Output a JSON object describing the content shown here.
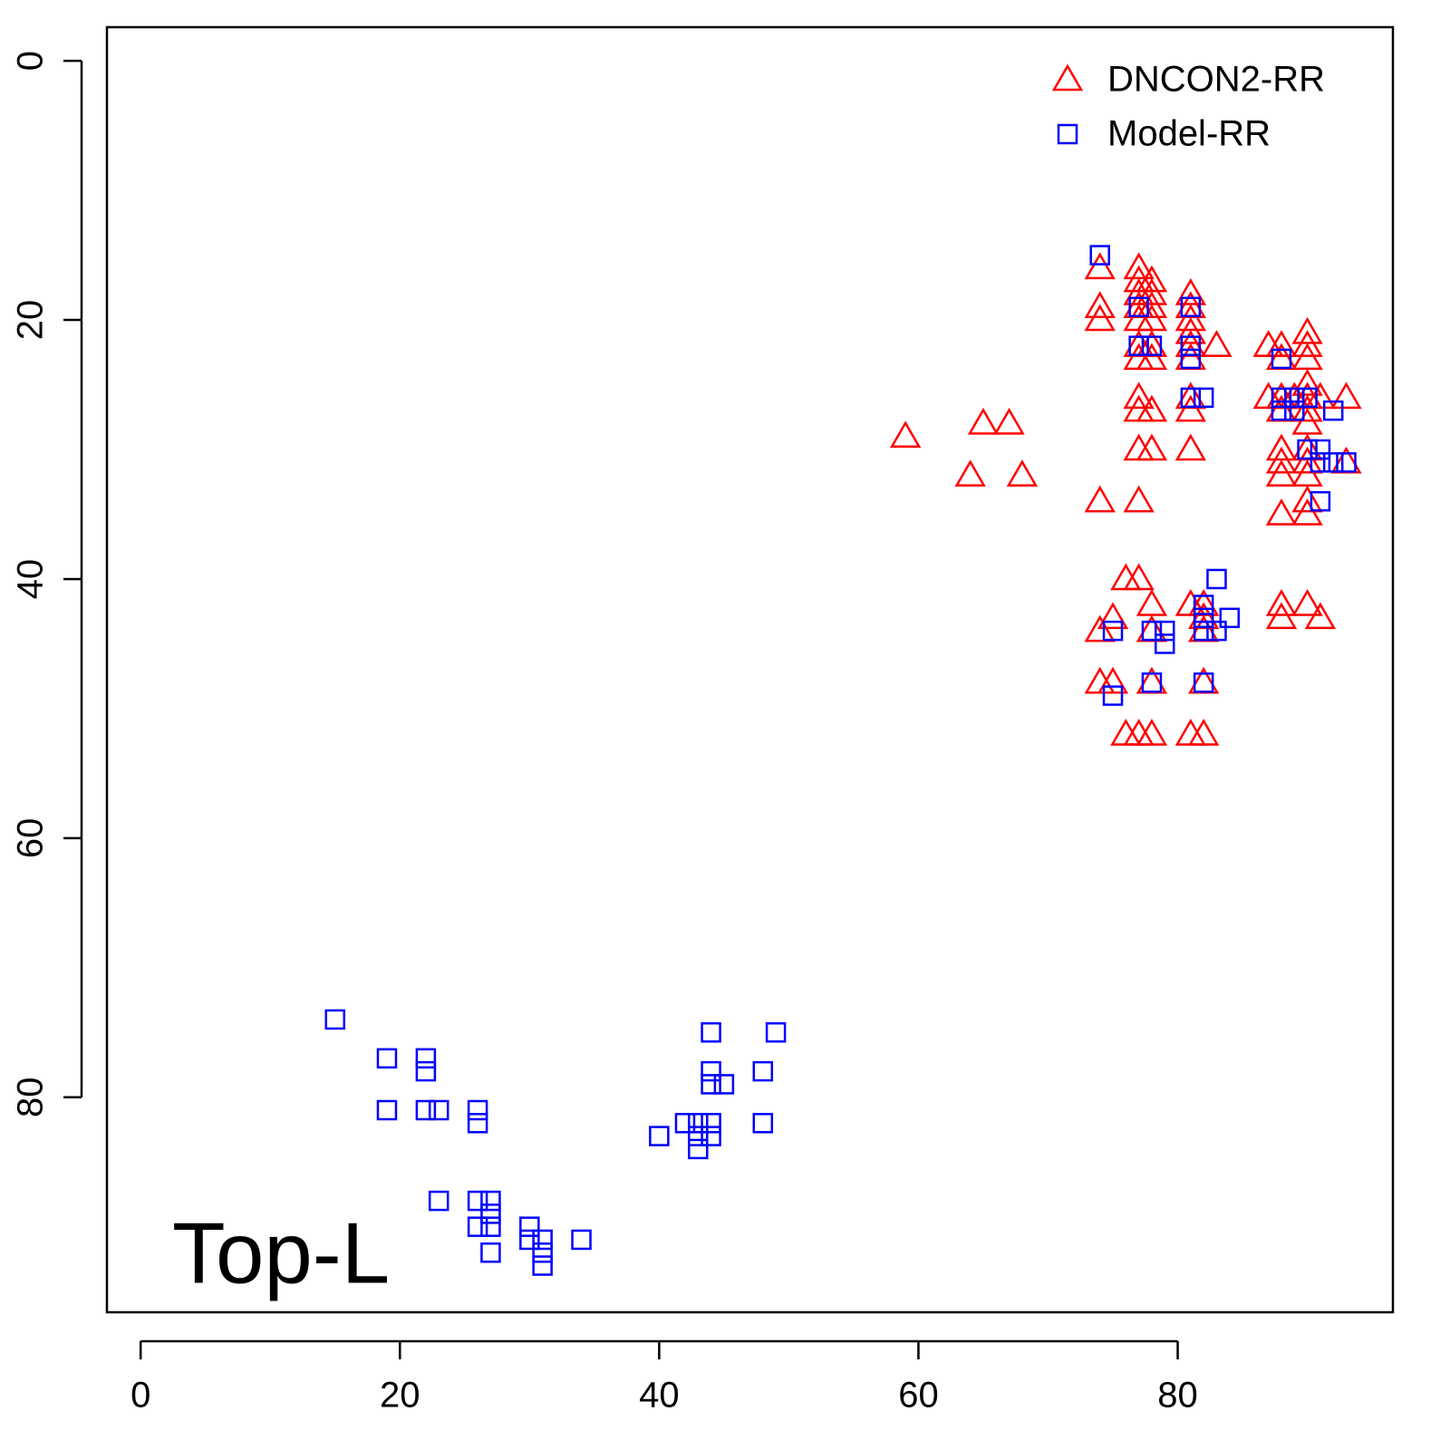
{
  "chart_data": {
    "type": "scatter",
    "annotation": "Top-L",
    "xlim": [
      -2.6,
      96.6
    ],
    "xticks": [
      0,
      20,
      40,
      60,
      80
    ],
    "ylim": [
      96.6,
      -2.6
    ],
    "yticks": [
      0,
      20,
      40,
      60,
      80
    ],
    "legend": "top-right",
    "series": [
      {
        "name": "DNCON2-RR",
        "color": "#ff0000",
        "marker": "triangle",
        "x": [
          59,
          65,
          67,
          64,
          68,
          74,
          74,
          74,
          74,
          74,
          74,
          75,
          75,
          76,
          77,
          77,
          77,
          77,
          77,
          77,
          77,
          77,
          77,
          77,
          77,
          77,
          76,
          77,
          78,
          78,
          78,
          78,
          78,
          78,
          78,
          78,
          78,
          78,
          78,
          78,
          81,
          81,
          81,
          81,
          81,
          81,
          81,
          81,
          81,
          81,
          81,
          82,
          82,
          82,
          82,
          82,
          83,
          87,
          87,
          88,
          88,
          88,
          88,
          88,
          88,
          88,
          88,
          88,
          88,
          90,
          90,
          90,
          90,
          90,
          90,
          90,
          90,
          90,
          90,
          90,
          90,
          90,
          89,
          91,
          91,
          93,
          93
        ],
        "y": [
          29,
          28,
          28,
          32,
          32,
          16,
          19,
          20,
          34,
          44,
          48,
          43,
          48,
          40,
          16,
          17,
          18,
          19,
          20,
          22,
          23,
          26,
          27,
          30,
          34,
          40,
          52,
          52,
          52,
          17,
          18,
          19,
          20,
          22,
          23,
          27,
          30,
          42,
          44,
          48,
          18,
          19,
          20,
          21,
          22,
          23,
          26,
          27,
          30,
          42,
          52,
          42,
          43,
          44,
          48,
          52,
          22,
          22,
          26,
          22,
          23,
          26,
          27,
          30,
          31,
          32,
          35,
          42,
          43,
          21,
          22,
          23,
          25,
          26,
          27,
          28,
          30,
          31,
          32,
          34,
          35,
          42,
          26,
          26,
          43,
          26,
          31
        ]
      },
      {
        "name": "Model-RR",
        "color": "#0000ff",
        "marker": "square",
        "x": [
          74,
          77,
          77,
          78,
          81,
          81,
          81,
          81,
          82,
          88,
          88,
          88,
          89,
          89,
          90,
          90,
          91,
          91,
          92,
          92,
          93,
          91,
          75,
          75,
          78,
          78,
          79,
          79,
          82,
          82,
          82,
          83,
          83,
          84,
          82,
          15,
          19,
          19,
          22,
          22,
          22,
          23,
          23,
          26,
          26,
          26,
          26,
          27,
          27,
          27,
          27,
          30,
          30,
          31,
          31,
          31,
          34,
          40,
          42,
          43,
          43,
          43,
          44,
          44,
          44,
          44,
          44,
          45,
          48,
          48,
          49
        ],
        "y": [
          15,
          19,
          22,
          22,
          19,
          22,
          23,
          26,
          26,
          23,
          26,
          27,
          26,
          27,
          26,
          30,
          30,
          31,
          27,
          31,
          31,
          34,
          44,
          49,
          44,
          48,
          44,
          45,
          42,
          43,
          44,
          40,
          44,
          43,
          48,
          74,
          77,
          81,
          77,
          78,
          81,
          81,
          88,
          81,
          82,
          88,
          90,
          88,
          89,
          90,
          92,
          90,
          91,
          91,
          92,
          93,
          91,
          83,
          82,
          82,
          83,
          84,
          75,
          78,
          79,
          82,
          83,
          79,
          78,
          82,
          75
        ]
      }
    ]
  }
}
